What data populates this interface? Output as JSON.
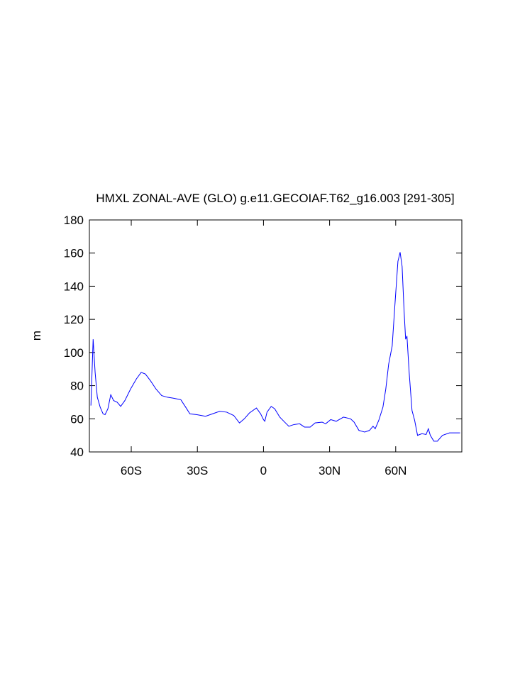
{
  "chart_data": {
    "type": "line",
    "title": "HMXL ZONAL-AVE (GLO) g.e11.GECOIAF.T62_g16.003 [291-305]",
    "y_label": "m",
    "x": [
      -78.3,
      -77.3,
      -76.4,
      -75.4,
      -74.1,
      -72.8,
      -71.9,
      -70.6,
      -69.3,
      -68,
      -66.4,
      -64.8,
      -62.9,
      -60.3,
      -57.7,
      -55.5,
      -53.6,
      -51.3,
      -48.8,
      -46.2,
      -43.6,
      -41.1,
      -37.5,
      -35.3,
      -33.4,
      -30.2,
      -26.3,
      -23.1,
      -19.9,
      -16.7,
      -13.5,
      -10.9,
      -8.7,
      -6.4,
      -3.2,
      -1.3,
      0,
      0.6,
      1.6,
      3.5,
      5.1,
      7.4,
      9.6,
      11.5,
      13.8,
      16.4,
      18.6,
      21.2,
      23.4,
      26.6,
      28.2,
      30.5,
      33,
      36.3,
      39.5,
      41.1,
      43.3,
      45.9,
      48.1,
      49.7,
      50.7,
      52.3,
      54.2,
      55.5,
      56.8,
      58.4,
      59.7,
      61,
      62,
      62.9,
      63.8,
      64.5,
      65.1,
      66.1,
      67.4,
      68.6,
      69.9,
      71.9,
      73.8,
      74.8,
      75.7,
      77.3,
      78.9,
      81.2,
      84.4,
      89.2
    ],
    "series": [
      {
        "name": "HMXL",
        "color": "#0000ff",
        "values": [
          68,
          108,
          88,
          73,
          67,
          63,
          62.5,
          66,
          74.5,
          71,
          70,
          67.5,
          71,
          78,
          84,
          88,
          87,
          83,
          78,
          74,
          73,
          72.5,
          71.5,
          67,
          63,
          62.5,
          61.5,
          63,
          64.5,
          64,
          62,
          57.5,
          60,
          63.5,
          66.5,
          63,
          59.5,
          58.5,
          64,
          67.5,
          66,
          61,
          58,
          55.5,
          56.5,
          57,
          55,
          55,
          57.5,
          58,
          57,
          59.5,
          58.5,
          61,
          60,
          58,
          53,
          52,
          53,
          55.5,
          54,
          59,
          67,
          78,
          93,
          104,
          130,
          155,
          160.5,
          152,
          125,
          108,
          110,
          88,
          65,
          59,
          50,
          51,
          50.5,
          54,
          50,
          46.5,
          46.5,
          50,
          51.5,
          51.5
        ]
      }
    ],
    "xlim": [
      -79,
      90
    ],
    "xticks": [
      {
        "value": -60,
        "label": "60S"
      },
      {
        "value": -30,
        "label": "30S"
      },
      0,
      {
        "value": 30,
        "label": "30N"
      },
      {
        "value": 60,
        "label": "60N"
      }
    ],
    "ylim": [
      40,
      180
    ],
    "yticks": [
      40,
      60,
      80,
      100,
      120,
      140,
      160,
      180
    ]
  }
}
